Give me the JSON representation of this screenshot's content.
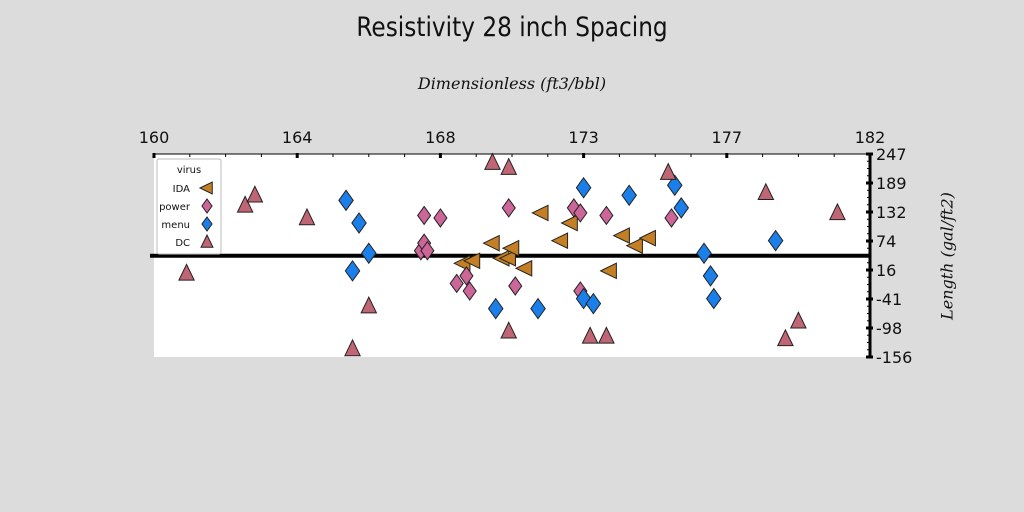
{
  "chart_data": {
    "type": "scatter",
    "title": "Resistivity 28 inch Spacing",
    "xlabel": "Dimensionless (ft3/bbl)",
    "ylabel": "Length (gal/ft2)",
    "xlim": [
      160,
      182
    ],
    "ylim": [
      -156,
      247
    ],
    "x_ticks": [
      "160",
      "164",
      "168",
      "173",
      "177",
      "182"
    ],
    "y_ticks": [
      "247",
      "189",
      "132",
      "74",
      "16",
      "-41",
      "-98",
      "-156"
    ],
    "reference_line_y": 45,
    "legend": {
      "title": "virus",
      "placement": "top-left"
    },
    "series": [
      {
        "name": "IDA",
        "marker": "triangle-left",
        "color": "#c47f24",
        "points": [
          [
            169.5,
            30
          ],
          [
            169.8,
            35
          ],
          [
            170.4,
            70
          ],
          [
            170.7,
            40
          ],
          [
            170.9,
            40
          ],
          [
            171.0,
            60
          ],
          [
            171.4,
            20
          ],
          [
            171.9,
            130
          ],
          [
            172.5,
            75
          ],
          [
            172.8,
            110
          ],
          [
            174.0,
            15
          ],
          [
            174.4,
            85
          ],
          [
            174.8,
            65
          ],
          [
            175.2,
            80
          ]
        ]
      },
      {
        "name": "power",
        "marker": "diamond",
        "color": "#cc6699",
        "points": [
          [
            168.2,
            55
          ],
          [
            168.3,
            70
          ],
          [
            168.3,
            125
          ],
          [
            168.4,
            55
          ],
          [
            168.8,
            120
          ],
          [
            169.3,
            -10
          ],
          [
            169.6,
            5
          ],
          [
            169.7,
            -25
          ],
          [
            170.9,
            140
          ],
          [
            171.1,
            -15
          ],
          [
            172.9,
            140
          ],
          [
            173.1,
            130
          ],
          [
            173.1,
            -25
          ],
          [
            173.9,
            125
          ],
          [
            175.9,
            120
          ]
        ]
      },
      {
        "name": "menu",
        "marker": "diamond",
        "color": "#1a7fe8",
        "points": [
          [
            165.9,
            155
          ],
          [
            166.1,
            15
          ],
          [
            166.3,
            110
          ],
          [
            166.6,
            50
          ],
          [
            170.5,
            -60
          ],
          [
            171.8,
            -60
          ],
          [
            173.2,
            180
          ],
          [
            173.2,
            -40
          ],
          [
            173.5,
            -50
          ],
          [
            174.6,
            165
          ],
          [
            176.0,
            185
          ],
          [
            176.2,
            140
          ],
          [
            176.9,
            50
          ],
          [
            177.1,
            5
          ],
          [
            177.2,
            -40
          ],
          [
            179.1,
            75
          ]
        ]
      },
      {
        "name": "DC",
        "marker": "triangle-up",
        "color": "#c06573",
        "points": [
          [
            161.0,
            10
          ],
          [
            162.8,
            145
          ],
          [
            163.1,
            165
          ],
          [
            164.7,
            120
          ],
          [
            166.1,
            -140
          ],
          [
            166.6,
            -55
          ],
          [
            170.4,
            230
          ],
          [
            170.9,
            220
          ],
          [
            170.9,
            -105
          ],
          [
            173.4,
            -115
          ],
          [
            173.9,
            -115
          ],
          [
            175.8,
            210
          ],
          [
            178.8,
            170
          ],
          [
            179.4,
            -120
          ],
          [
            179.8,
            -85
          ],
          [
            181.0,
            130
          ]
        ]
      }
    ]
  }
}
